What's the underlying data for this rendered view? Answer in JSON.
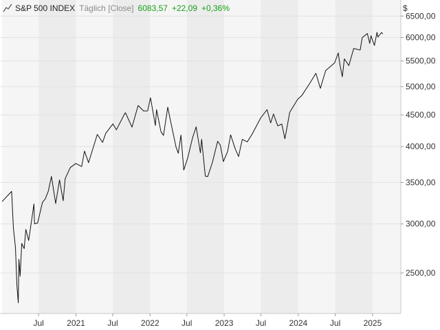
{
  "header": {
    "name": "S&P 500 INDEX",
    "frequency": "Täglich [Close]",
    "last": "6083,57",
    "change": "+22,09",
    "change_pct": "+0,36%",
    "currency": "$"
  },
  "colors": {
    "line": "#111111",
    "positive": "#19a019",
    "band_light": "#f5f5f5",
    "band_dark": "#ececec",
    "grid": "#e2e2e2"
  },
  "icons": {
    "chart_type": "line-chart-icon"
  },
  "chart_data": {
    "type": "line",
    "title": "S&P 500 INDEX",
    "xlabel": "",
    "ylabel": "",
    "y_scale": "log",
    "ylim": [
      2150,
      6900
    ],
    "xlim": [
      "2020-01-03",
      "2025-02-21"
    ],
    "grid": true,
    "legend": "none",
    "y_ticks": [
      {
        "value": 2500,
        "label": "2500,00"
      },
      {
        "value": 3000,
        "label": "3000,00"
      },
      {
        "value": 3500,
        "label": "3500,00"
      },
      {
        "value": 4000,
        "label": "4000,00"
      },
      {
        "value": 4500,
        "label": "4500,00"
      },
      {
        "value": 5000,
        "label": "5000,00"
      },
      {
        "value": 5500,
        "label": "5500,00"
      },
      {
        "value": 6000,
        "label": "6000,00"
      },
      {
        "value": 6500,
        "label": "6500,00"
      }
    ],
    "x_ticks": [
      {
        "date": "2020-07-01",
        "label": "Jul"
      },
      {
        "date": "2021-01-01",
        "label": "2021"
      },
      {
        "date": "2021-07-01",
        "label": "Jul"
      },
      {
        "date": "2022-01-01",
        "label": "2022"
      },
      {
        "date": "2022-07-01",
        "label": "Jul"
      },
      {
        "date": "2023-01-01",
        "label": "2023"
      },
      {
        "date": "2023-07-01",
        "label": "Jul"
      },
      {
        "date": "2024-01-01",
        "label": "2024"
      },
      {
        "date": "2024-07-01",
        "label": "Jul"
      },
      {
        "date": "2025-01-01",
        "label": "2025"
      }
    ],
    "series": [
      {
        "x": [
          "2020-01-03",
          "2020-02-19",
          "2020-02-28",
          "2020-03-09",
          "2020-03-16",
          "2020-03-23",
          "2020-03-26",
          "2020-04-01",
          "2020-04-09",
          "2020-04-21",
          "2020-04-29",
          "2020-05-13",
          "2020-06-08",
          "2020-06-11",
          "2020-06-26",
          "2020-07-20",
          "2020-08-03",
          "2020-08-18",
          "2020-09-02",
          "2020-09-23",
          "2020-10-12",
          "2020-10-30",
          "2020-11-09",
          "2020-12-04",
          "2020-12-31",
          "2021-01-29",
          "2021-02-12",
          "2021-03-04",
          "2021-04-16",
          "2021-05-12",
          "2021-05-28",
          "2021-07-02",
          "2021-07-19",
          "2021-08-30",
          "2021-09-02",
          "2021-10-04",
          "2021-11-03",
          "2021-11-30",
          "2021-12-20",
          "2022-01-03",
          "2022-01-27",
          "2022-02-02",
          "2022-02-24",
          "2022-03-08",
          "2022-03-29",
          "2022-04-12",
          "2022-05-09",
          "2022-05-20",
          "2022-06-02",
          "2022-06-16",
          "2022-07-05",
          "2022-07-29",
          "2022-08-16",
          "2022-09-06",
          "2022-09-12",
          "2022-09-30",
          "2022-10-12",
          "2022-11-04",
          "2022-11-30",
          "2022-12-13",
          "2022-12-28",
          "2023-01-18",
          "2023-02-02",
          "2023-02-24",
          "2023-03-13",
          "2023-03-31",
          "2023-04-25",
          "2023-05-19",
          "2023-06-30",
          "2023-07-31",
          "2023-08-18",
          "2023-09-01",
          "2023-09-22",
          "2023-10-12",
          "2023-10-27",
          "2023-11-20",
          "2023-12-29",
          "2024-01-19",
          "2024-02-28",
          "2024-03-28",
          "2024-04-19",
          "2024-05-15",
          "2024-06-28",
          "2024-07-16",
          "2024-07-24",
          "2024-08-05",
          "2024-08-15",
          "2024-09-06",
          "2024-09-30",
          "2024-11-01",
          "2024-11-11",
          "2024-12-06",
          "2024-12-18",
          "2024-12-24",
          "2025-01-10",
          "2025-01-23",
          "2025-01-27",
          "2025-02-14",
          "2025-02-21"
        ],
        "y": [
          3260,
          3386,
          2954,
          2746,
          2386,
          2237,
          2630,
          2470,
          2790,
          2737,
          2940,
          2820,
          3232,
          3002,
          3010,
          3251,
          3294,
          3390,
          3580,
          3237,
          3534,
          3270,
          3550,
          3699,
          3756,
          3714,
          3934,
          3768,
          4185,
          4063,
          4204,
          4352,
          4258,
          4529,
          4537,
          4300,
          4660,
          4567,
          4568,
          4796,
          4326,
          4589,
          4225,
          4170,
          4631,
          4397,
          3991,
          3901,
          4176,
          3666,
          3831,
          4130,
          4305,
          3908,
          4110,
          3585,
          3577,
          3770,
          4080,
          4019,
          3783,
          3928,
          4179,
          3970,
          3855,
          4109,
          4071,
          4191,
          4450,
          4589,
          4369,
          4515,
          4320,
          4349,
          4117,
          4547,
          4770,
          4840,
          5070,
          5254,
          4967,
          5308,
          5460,
          5667,
          5427,
          5186,
          5543,
          5408,
          5762,
          5728,
          6001,
          6090,
          5872,
          6040,
          5827,
          6118,
          6012,
          6114,
          6083
        ]
      }
    ]
  }
}
